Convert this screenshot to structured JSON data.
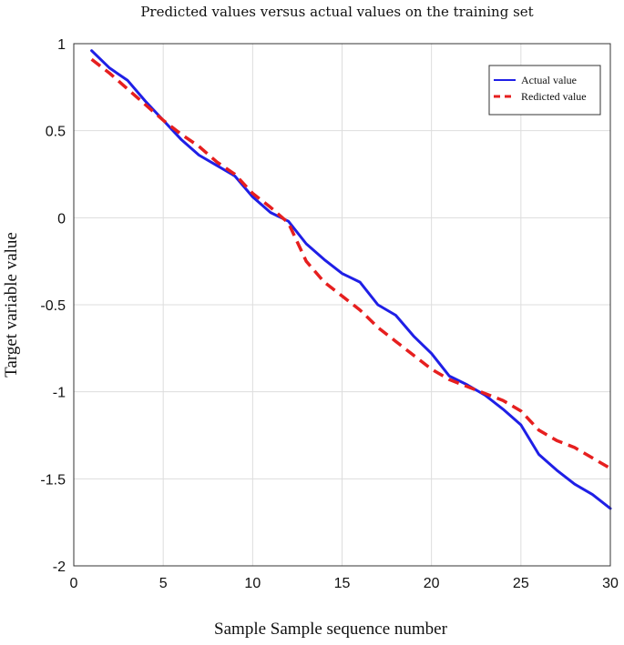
{
  "chart_data": {
    "type": "line",
    "title": "Predicted values versus actual values on the training set",
    "xlabel": "Sample Sample sequence number",
    "ylabel": "Target variable value",
    "xlim": [
      0,
      30
    ],
    "ylim": [
      -2,
      1
    ],
    "xticks": [
      0,
      5,
      10,
      15,
      20,
      25,
      30
    ],
    "yticks": [
      -2,
      -1.5,
      -1,
      -0.5,
      0,
      0.5,
      1
    ],
    "xtick_labels": [
      "0",
      "5",
      "10",
      "15",
      "20",
      "25",
      "30"
    ],
    "ytick_labels": [
      "-2",
      "-1.5",
      "-1",
      "-0.5",
      "0",
      "0.5",
      "1"
    ],
    "grid": true,
    "legend_position": "top-right",
    "x": [
      1,
      2,
      3,
      4,
      5,
      6,
      7,
      8,
      9,
      10,
      11,
      12,
      13,
      14,
      15,
      16,
      17,
      18,
      19,
      20,
      21,
      22,
      23,
      24,
      25,
      26,
      27,
      28,
      29,
      30
    ],
    "series": [
      {
        "name": "Actual value",
        "color": "#1f1fe6",
        "style": "solid",
        "values": [
          0.96,
          0.86,
          0.79,
          0.67,
          0.56,
          0.45,
          0.36,
          0.3,
          0.24,
          0.12,
          0.03,
          -0.02,
          -0.15,
          -0.24,
          -0.32,
          -0.37,
          -0.5,
          -0.56,
          -0.68,
          -0.78,
          -0.91,
          -0.96,
          -1.02,
          -1.1,
          -1.19,
          -1.36,
          -1.45,
          -1.53,
          -1.59,
          -1.67
        ]
      },
      {
        "name": "Redicted value",
        "color": "#e61f1f",
        "style": "dashed",
        "values": [
          0.91,
          0.83,
          0.74,
          0.65,
          0.56,
          0.48,
          0.41,
          0.32,
          0.25,
          0.14,
          0.06,
          -0.03,
          -0.25,
          -0.37,
          -0.45,
          -0.53,
          -0.63,
          -0.71,
          -0.79,
          -0.87,
          -0.93,
          -0.97,
          -1.01,
          -1.05,
          -1.11,
          -1.22,
          -1.28,
          -1.32,
          -1.38,
          -1.44
        ]
      }
    ]
  }
}
